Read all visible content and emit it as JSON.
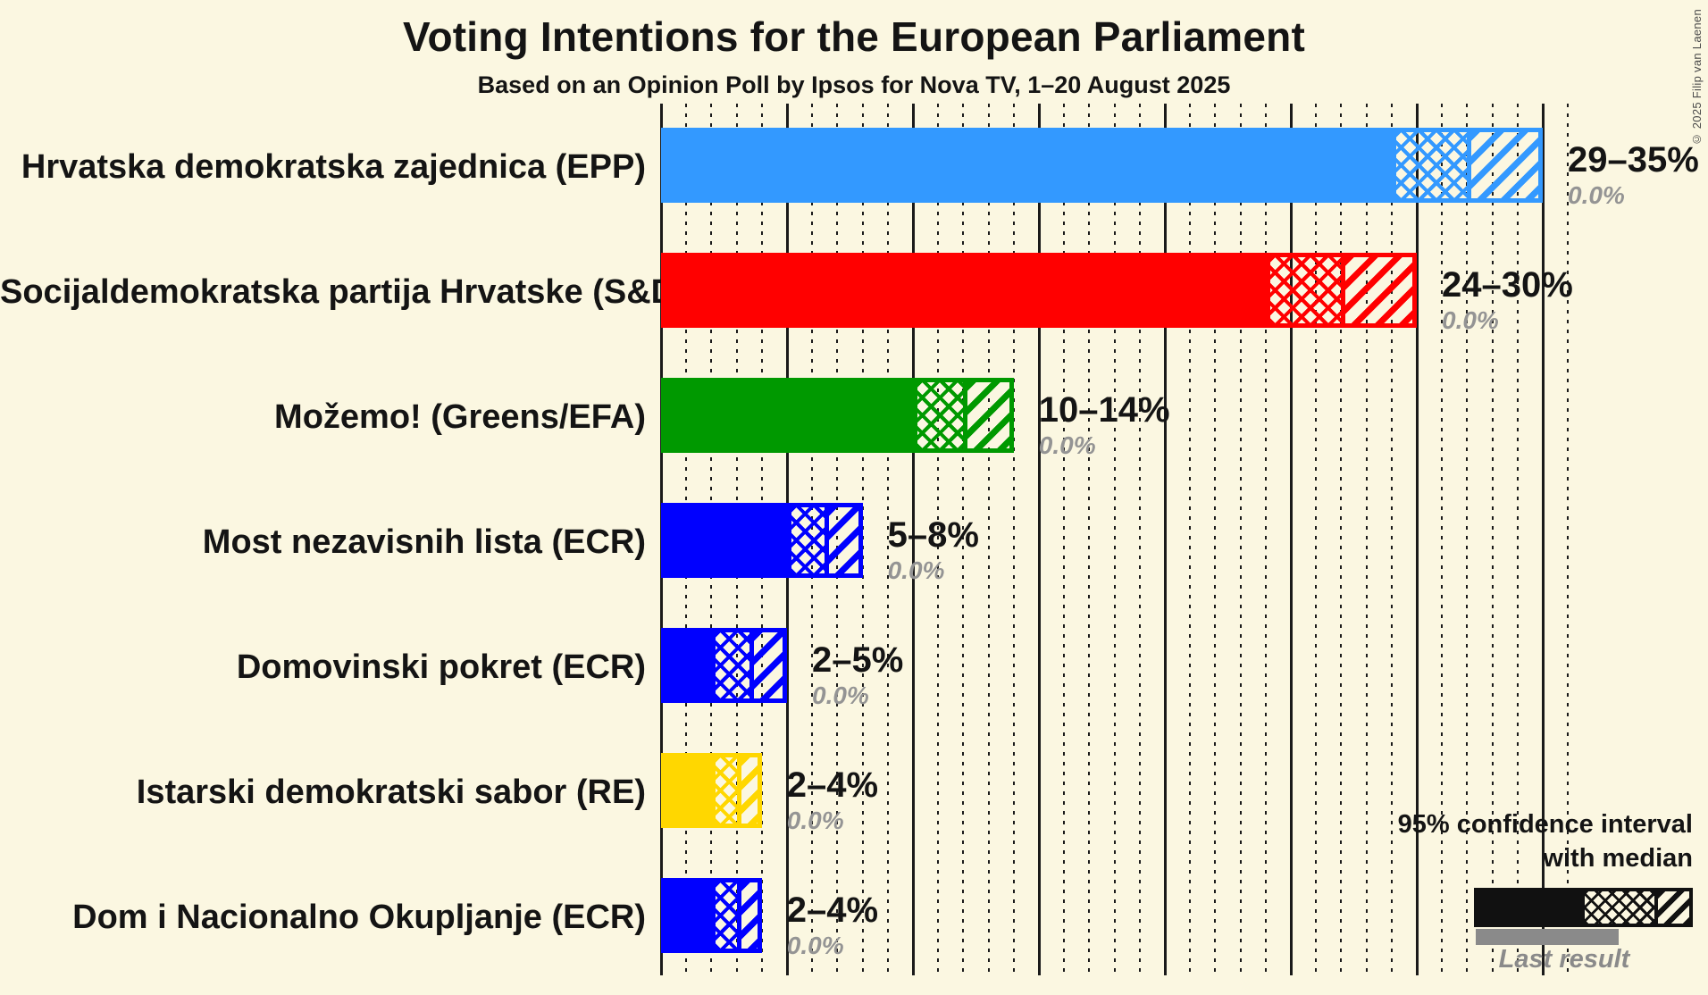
{
  "page": {
    "background": "#FBF7E1"
  },
  "header": {
    "title": "Voting Intentions for the European Parliament",
    "subtitle": "Based on an Opinion Poll by Ipsos for Nova TV, 1–20 August 2025"
  },
  "copyright": "© 2025 Filip van Laenen",
  "chart_data": {
    "type": "bar",
    "orientation": "horizontal",
    "unit": "%",
    "x_axis": {
      "min": 0,
      "max": 36,
      "minor_tick_step": 1,
      "major_tick_step": 5,
      "tick_labels_visible": false,
      "gridlines": "dotted minor every 1%, solid major every 5%"
    },
    "bars": [
      {
        "party": "Hrvatska demokratska zajednica (EPP)",
        "ci_low": 29,
        "median": 32,
        "ci_high": 35,
        "last_result": 0.0,
        "range_label": "29–35%",
        "last_result_label": "0.0%",
        "color": "#3399FF"
      },
      {
        "party": "Socijaldemokratska partija Hrvatske (S&D)",
        "ci_low": 24,
        "median": 27,
        "ci_high": 30,
        "last_result": 0.0,
        "range_label": "24–30%",
        "last_result_label": "0.0%",
        "color": "#FF0000"
      },
      {
        "party": "Možemo! (Greens/EFA)",
        "ci_low": 10,
        "median": 12,
        "ci_high": 14,
        "last_result": 0.0,
        "range_label": "10–14%",
        "last_result_label": "0.0%",
        "color": "#009900"
      },
      {
        "party": "Most nezavisnih lista (ECR)",
        "ci_low": 5,
        "median": 6.5,
        "ci_high": 8,
        "last_result": 0.0,
        "range_label": "5–8%",
        "last_result_label": "0.0%",
        "color": "#0000FF"
      },
      {
        "party": "Domovinski pokret (ECR)",
        "ci_low": 2,
        "median": 3.5,
        "ci_high": 5,
        "last_result": 0.0,
        "range_label": "2–5%",
        "last_result_label": "0.0%",
        "color": "#0000FF"
      },
      {
        "party": "Istarski demokratski sabor (RE)",
        "ci_low": 2,
        "median": 3,
        "ci_high": 4,
        "last_result": 0.0,
        "range_label": "2–4%",
        "last_result_label": "0.0%",
        "color": "#FFD700"
      },
      {
        "party": "Dom i Nacionalno Okupljanje (ECR)",
        "ci_low": 2,
        "median": 3,
        "ci_high": 4,
        "last_result": 0.0,
        "range_label": "2–4%",
        "last_result_label": "0.0%",
        "color": "#0000FF"
      }
    ],
    "legend": {
      "ci_line1": "95% confidence interval",
      "ci_line2": "with median",
      "last_result": "Last result",
      "sample_color": "#111111",
      "last_result_bar_color": "#8A8A8A"
    }
  }
}
